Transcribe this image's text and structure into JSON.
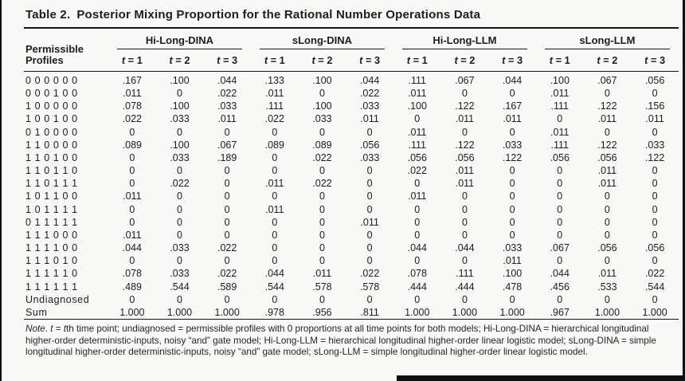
{
  "title": {
    "label": "Table 2.",
    "text": "Posterior Mixing Proportion for the Rational Number Operations Data"
  },
  "table": {
    "stub_header": {
      "line1": "Permissible",
      "line2": "Profiles"
    },
    "groups": [
      {
        "label": "Hi-Long-DINA"
      },
      {
        "label": "sLong-DINA"
      },
      {
        "label": "Hi-Long-LLM"
      },
      {
        "label": "sLong-LLM"
      }
    ],
    "time_labels": [
      "t = 1",
      "t = 2",
      "t = 3"
    ],
    "rows": [
      {
        "profile": "0 0 0 0 0 0",
        "values": [
          ".167",
          ".100",
          ".044",
          ".133",
          ".100",
          ".044",
          ".111",
          ".067",
          ".044",
          ".100",
          ".067",
          ".056"
        ]
      },
      {
        "profile": "0 0 0 1 0 0",
        "values": [
          ".011",
          "0",
          ".022",
          ".011",
          "0",
          ".022",
          ".011",
          "0",
          "0",
          ".011",
          "0",
          "0"
        ]
      },
      {
        "profile": "1 0 0 0 0 0",
        "values": [
          ".078",
          ".100",
          ".033",
          ".111",
          ".100",
          ".033",
          ".100",
          ".122",
          ".167",
          ".111",
          ".122",
          ".156"
        ]
      },
      {
        "profile": "1 0 0 1 0 0",
        "values": [
          ".022",
          ".033",
          ".011",
          ".022",
          ".033",
          ".011",
          "0",
          ".011",
          ".011",
          "0",
          ".011",
          ".011"
        ]
      },
      {
        "profile": "0 1 0 0 0 0",
        "values": [
          "0",
          "0",
          "0",
          "0",
          "0",
          "0",
          ".011",
          "0",
          "0",
          ".011",
          "0",
          "0"
        ]
      },
      {
        "profile": "1 1 0 0 0 0",
        "values": [
          ".089",
          ".100",
          ".067",
          ".089",
          ".089",
          ".056",
          ".111",
          ".122",
          ".033",
          ".111",
          ".122",
          ".033"
        ]
      },
      {
        "profile": "1 1 0 1 0 0",
        "values": [
          "0",
          ".033",
          ".189",
          "0",
          ".022",
          ".033",
          ".056",
          ".056",
          ".122",
          ".056",
          ".056",
          ".122"
        ]
      },
      {
        "profile": "1 1 0 1 1 0",
        "values": [
          "0",
          "0",
          "0",
          "0",
          "0",
          "0",
          ".022",
          ".011",
          "0",
          "0",
          ".011",
          "0"
        ]
      },
      {
        "profile": "1 1 0 1 1 1",
        "values": [
          "0",
          ".022",
          "0",
          ".011",
          ".022",
          "0",
          "0",
          ".011",
          "0",
          "0",
          ".011",
          "0"
        ]
      },
      {
        "profile": "1 0 1 1 0 0",
        "values": [
          ".011",
          "0",
          "0",
          "0",
          "0",
          "0",
          ".011",
          "0",
          "0",
          "0",
          "0",
          "0"
        ]
      },
      {
        "profile": "1 0 1 1 1 1",
        "values": [
          "0",
          "0",
          "0",
          ".011",
          "0",
          "0",
          "0",
          "0",
          "0",
          "0",
          "0",
          "0"
        ]
      },
      {
        "profile": "0 1 1 1 1 1",
        "values": [
          "0",
          "0",
          "0",
          "0",
          "0",
          ".011",
          "0",
          "0",
          "0",
          "0",
          "0",
          "0"
        ]
      },
      {
        "profile": "1 1 1 0 0 0",
        "values": [
          ".011",
          "0",
          "0",
          "0",
          "0",
          "0",
          "0",
          "0",
          "0",
          "0",
          "0",
          "0"
        ]
      },
      {
        "profile": "1 1 1 1 0 0",
        "values": [
          ".044",
          ".033",
          ".022",
          "0",
          "0",
          "0",
          ".044",
          ".044",
          ".033",
          ".067",
          ".056",
          ".056"
        ]
      },
      {
        "profile": "1 1 1 0 1 0",
        "values": [
          "0",
          "0",
          "0",
          "0",
          "0",
          "0",
          "0",
          "0",
          ".011",
          "0",
          "0",
          "0"
        ]
      },
      {
        "profile": "1 1 1 1 1 0",
        "values": [
          ".078",
          ".033",
          ".022",
          ".044",
          ".011",
          ".022",
          ".078",
          ".111",
          ".100",
          ".044",
          ".011",
          ".022"
        ]
      },
      {
        "profile": "1 1 1 1 1 1",
        "values": [
          ".489",
          ".544",
          ".589",
          ".544",
          ".578",
          ".578",
          ".444",
          ".444",
          ".478",
          ".456",
          ".533",
          ".544"
        ]
      },
      {
        "profile": "Undiagnosed",
        "values": [
          "0",
          "0",
          "0",
          "0",
          "0",
          "0",
          "0",
          "0",
          "0",
          "0",
          "0",
          "0"
        ]
      },
      {
        "profile": "Sum",
        "values": [
          "1.000",
          "1.000",
          "1.000",
          ".978",
          ".956",
          ".811",
          "1.000",
          "1.000",
          "1.000",
          ".967",
          "1.000",
          "1.000"
        ]
      }
    ]
  },
  "note": {
    "segments": [
      {
        "text": "Note",
        "italic": true
      },
      {
        "text": ". ",
        "italic": false
      },
      {
        "text": "t",
        "italic": true
      },
      {
        "text": " = ",
        "italic": false
      },
      {
        "text": "t",
        "italic": true
      },
      {
        "text": "th time point; undiagnosed = permissible profiles with 0 proportions at all time points for both models; Hi-Long-DINA = hierarchical longitudinal higher-order deterministic-inputs, noisy “and” gate model; Hi-Long-LLM = hierarchical longitudinal higher-order linear logistic model; sLong-DINA = simple longitudinal higher-order deterministic-inputs, noisy “and” gate model; sLong-LLM = simple longitudinal higher-order linear logistic model.",
        "italic": false
      }
    ]
  }
}
